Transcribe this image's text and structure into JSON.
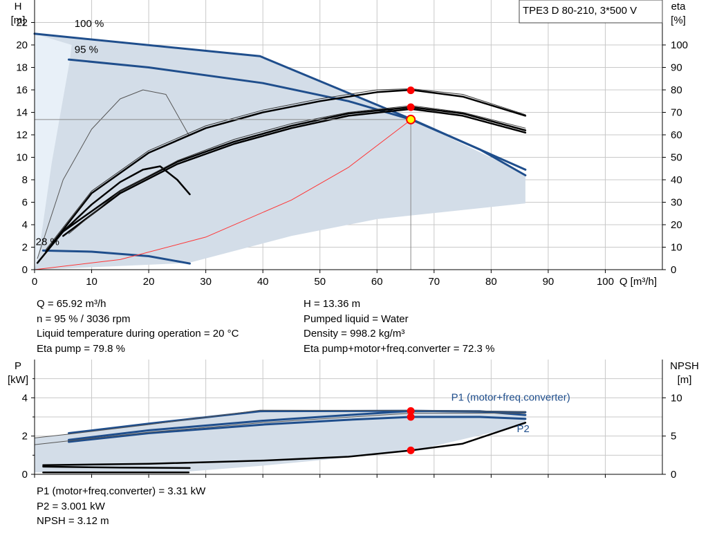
{
  "info_box": "TPE3 D 80-210, 3*500 V",
  "operating_point": {
    "col1": [
      "Q = 65.92 m³/h",
      "n = 95 % / 3036 rpm",
      "Liquid temperature during operation = 20 °C",
      "Eta pump = 79.8 %"
    ],
    "col2": [
      "H = 13.36 m",
      "Pumped liquid = Water",
      "Density = 998.2 kg/m³",
      "Eta pump+motor+freq.converter = 72.3 %"
    ],
    "col3": [
      "P1 (motor+freq.converter) = 3.31 kW",
      "P2 = 3.001 kW",
      "NPSH = 3.12 m"
    ]
  },
  "colors": {
    "curve_blue": "#1f4e8c",
    "area_fill": "#d3dde8",
    "area_fill_light": "#e8f0f8",
    "marker_red": "#ff0000",
    "marker_yellow": "#ffff00",
    "system_curve": "#ff3333",
    "grid": "#c8c8c8"
  },
  "chart_data": [
    {
      "type": "line",
      "title": "",
      "xlabel": "Q [m³/h]",
      "ylabel": [
        "H",
        "[m]"
      ],
      "y2label": [
        "eta",
        "[%]"
      ],
      "xlim": [
        0,
        110
      ],
      "ylim": [
        0,
        24
      ],
      "y2lim": [
        0,
        120
      ],
      "x_ticks": [
        0,
        10,
        20,
        30,
        40,
        50,
        60,
        70,
        80,
        90,
        100
      ],
      "y_ticks": [
        0,
        2,
        4,
        6,
        8,
        10,
        12,
        14,
        16,
        18,
        20,
        22
      ],
      "y2_ticks": [
        0,
        10,
        20,
        30,
        40,
        50,
        60,
        70,
        80,
        90,
        100
      ],
      "curve_labels": [
        {
          "text": "100 %",
          "x": 7,
          "y": 21.6
        },
        {
          "text": "95 %",
          "x": 7,
          "y": 19.3
        },
        {
          "text": "28 %",
          "x": 0.2,
          "y": 2.2
        }
      ],
      "operating_area": {
        "upper": [
          [
            0,
            21.0
          ],
          [
            39.5,
            19.0
          ],
          [
            66,
            13.4
          ],
          [
            86,
            8.5
          ]
        ],
        "lower": [
          [
            86,
            5.9
          ],
          [
            60,
            4.5
          ],
          [
            45,
            3.0
          ],
          [
            27,
            0.6
          ],
          [
            5,
            0.1
          ],
          [
            0,
            0
          ]
        ]
      },
      "light_area": [
        [
          0,
          21.0
        ],
        [
          6.5,
          20.0
        ],
        [
          6.2,
          18.7
        ],
        [
          3.0,
          9.5
        ],
        [
          0.6,
          1.0
        ],
        [
          0,
          0
        ]
      ],
      "series": [
        {
          "name": "",
          "axis": "H",
          "style": "thick",
          "values": [
            [
              0,
              21.0
            ],
            [
              39.5,
              19.0
            ],
            [
              66,
              13.4
            ],
            [
              86,
              8.9
            ]
          ]
        },
        {
          "name": "",
          "axis": "H",
          "style": "thick",
          "values": [
            [
              6,
              18.7
            ],
            [
              20,
              18.0
            ],
            [
              40,
              16.6
            ],
            [
              55,
              15.0
            ],
            [
              66,
              13.36
            ],
            [
              78,
              10.7
            ],
            [
              86,
              8.4
            ]
          ]
        },
        {
          "name": "",
          "axis": "H",
          "style": "thick",
          "values": [
            [
              1.5,
              1.7
            ],
            [
              10,
              1.6
            ],
            [
              20,
              1.2
            ],
            [
              27.2,
              0.55
            ]
          ]
        },
        {
          "name": "",
          "axis": "H",
          "style": "thin",
          "values": [
            [
              0.5,
              1.0
            ],
            [
              5,
              8.0
            ],
            [
              10,
              12.5
            ],
            [
              15,
              15.2
            ],
            [
              19,
              16.0
            ],
            [
              23,
              15.6
            ],
            [
              27,
              12.0
            ]
          ]
        },
        {
          "name": "",
          "axis": "H",
          "style": "system",
          "values": [
            [
              0,
              0
            ],
            [
              15,
              0.9
            ],
            [
              30,
              2.9
            ],
            [
              45,
              6.2
            ],
            [
              55,
              9.1
            ],
            [
              66,
              13.36
            ]
          ]
        },
        {
          "name": "",
          "axis": "eta",
          "style": "thick",
          "values": [
            [
              0.5,
              3
            ],
            [
              5,
              17
            ],
            [
              10,
              29
            ],
            [
              15,
              39
            ],
            [
              19,
              44.5
            ],
            [
              22,
              46
            ],
            [
              25,
              40
            ],
            [
              27.2,
              33.5
            ]
          ]
        },
        {
          "name": "",
          "axis": "eta",
          "style": "thick",
          "values": [
            [
              2,
              8
            ],
            [
              10,
              34
            ],
            [
              20,
              52
            ],
            [
              30,
              63
            ],
            [
              40,
              70
            ],
            [
              50,
              75
            ],
            [
              60,
              79
            ],
            [
              66,
              80
            ],
            [
              75,
              77
            ],
            [
              86,
              68.5
            ]
          ]
        },
        {
          "name": "",
          "axis": "eta",
          "style": "thick",
          "values": [
            [
              5,
              17
            ],
            [
              15,
              35
            ],
            [
              25,
              48
            ],
            [
              35,
              57
            ],
            [
              45,
              64
            ],
            [
              55,
              69.5
            ],
            [
              66,
              72.3
            ],
            [
              75,
              69.5
            ],
            [
              86,
              62
            ]
          ]
        },
        {
          "name": "",
          "axis": "eta",
          "style": "thick",
          "values": [
            [
              5,
              15
            ],
            [
              15,
              34
            ],
            [
              25,
              47
            ],
            [
              35,
              56
            ],
            [
              45,
              63
            ],
            [
              55,
              68.5
            ],
            [
              66,
              71.5
            ],
            [
              75,
              68.5
            ],
            [
              86,
              61
            ]
          ]
        },
        {
          "name": "",
          "axis": "eta",
          "style": "thin",
          "values": [
            [
              2,
              9
            ],
            [
              10,
              35
            ],
            [
              20,
              53
            ],
            [
              30,
              64
            ],
            [
              40,
              71
            ],
            [
              50,
              76
            ],
            [
              60,
              80
            ],
            [
              66,
              80.5
            ],
            [
              75,
              78
            ],
            [
              86,
              69
            ]
          ]
        },
        {
          "name": "",
          "axis": "eta",
          "style": "thin",
          "values": [
            [
              6,
              16
            ],
            [
              15,
              35
            ],
            [
              25,
              48.5
            ],
            [
              35,
              58
            ],
            [
              45,
              65
            ],
            [
              55,
              70
            ],
            [
              66,
              73
            ],
            [
              75,
              70
            ],
            [
              86,
              63
            ]
          ]
        }
      ],
      "operating_point": {
        "q": 65.92,
        "h": 13.36,
        "eta_pump": 79.8,
        "eta_total": 72.3
      }
    },
    {
      "type": "line",
      "title": "",
      "xlabel": "",
      "ylabel": [
        "P",
        "[kW]"
      ],
      "y2label": [
        "NPSH",
        "[m]"
      ],
      "xlim": [
        0,
        110
      ],
      "ylim": [
        0,
        6
      ],
      "y2lim": [
        0,
        15
      ],
      "y_ticks": [
        0,
        2,
        4
      ],
      "y2_ticks": [
        0,
        5,
        10
      ],
      "labels": [
        {
          "text": "P1 (motor+freq.converter)",
          "x": 73,
          "y": 3.85
        },
        {
          "text": "P2",
          "x": 84.5,
          "y": 2.2
        }
      ],
      "area": {
        "upper": [
          [
            0,
            1.9
          ],
          [
            39.5,
            3.3
          ],
          [
            66,
            3.32
          ],
          [
            86,
            3.2
          ]
        ],
        "lower": [
          [
            86,
            2.6
          ],
          [
            66,
            1.2
          ],
          [
            40,
            0.45
          ],
          [
            27,
            0.15
          ],
          [
            0,
            0.1
          ]
        ]
      },
      "series": [
        {
          "name": "",
          "axis": "P",
          "style": "thick",
          "values": [
            [
              6,
              2.15
            ],
            [
              20,
              2.65
            ],
            [
              39.5,
              3.3
            ],
            [
              66,
              3.32
            ],
            [
              86,
              3.25
            ]
          ]
        },
        {
          "name": "",
          "axis": "P",
          "style": "thick",
          "values": [
            [
              6,
              1.8
            ],
            [
              20,
              2.3
            ],
            [
              40,
              2.8
            ],
            [
              55,
              3.1
            ],
            [
              66,
              3.31
            ],
            [
              78,
              3.3
            ],
            [
              86,
              3.1
            ]
          ]
        },
        {
          "name": "",
          "axis": "P",
          "style": "thick",
          "values": [
            [
              6,
              1.7
            ],
            [
              20,
              2.15
            ],
            [
              40,
              2.6
            ],
            [
              55,
              2.85
            ],
            [
              66,
              3.0
            ],
            [
              78,
              3.0
            ],
            [
              86,
              2.9
            ]
          ]
        },
        {
          "name": "",
          "axis": "P",
          "style": "thick",
          "values": [
            [
              1.5,
              0.48
            ],
            [
              20,
              0.55
            ],
            [
              40,
              0.72
            ],
            [
              55,
              0.92
            ],
            [
              66,
              1.25
            ],
            [
              75,
              1.6
            ],
            [
              86,
              2.7
            ]
          ]
        },
        {
          "name": "",
          "axis": "P",
          "style": "thick",
          "values": [
            [
              1.5,
              0.4
            ],
            [
              15,
              0.35
            ],
            [
              27.2,
              0.33
            ]
          ]
        },
        {
          "name": "",
          "axis": "P",
          "style": "thick",
          "values": [
            [
              1.5,
              0.1
            ],
            [
              27,
              0.1
            ]
          ]
        },
        {
          "name": "",
          "axis": "P",
          "style": "thin",
          "values": [
            [
              0,
              1.9
            ],
            [
              6,
              2.1
            ],
            [
              20,
              2.6
            ],
            [
              39.5,
              3.35
            ],
            [
              66,
              3.34
            ],
            [
              86,
              3.28
            ]
          ]
        },
        {
          "name": "",
          "axis": "P",
          "style": "thin",
          "values": [
            [
              0,
              1.55
            ],
            [
              6,
              1.75
            ],
            [
              20,
              2.2
            ],
            [
              40,
              2.7
            ],
            [
              66,
              3.2
            ],
            [
              86,
              3.2
            ]
          ]
        }
      ],
      "markers": [
        {
          "x": 65.92,
          "y": 3.31
        },
        {
          "x": 65.92,
          "y": 3.0
        },
        {
          "x": 65.92,
          "y": 1.25
        }
      ]
    }
  ]
}
